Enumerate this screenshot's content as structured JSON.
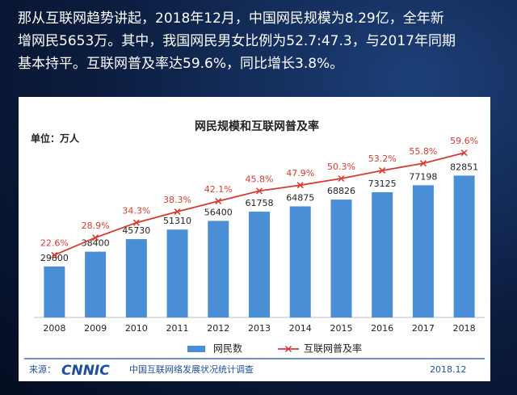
{
  "header": {
    "lines": [
      "那从互联网趋势讲起，2018年12月，中国网民规模为8.29亿，全年新",
      "增网民5653万。其中，我国网民男女比例为52.7:47.3，与2017年同期",
      "基本持平。互联网普及率达59.6%，同比增长3.8%。"
    ]
  },
  "chart_data": {
    "type": "bar-line",
    "title": "网民规模和互联网普及率",
    "unit": "单位：万人",
    "categories": [
      "2008",
      "2009",
      "2010",
      "2011",
      "2012",
      "2013",
      "2014",
      "2015",
      "2016",
      "2017",
      "2018"
    ],
    "series": [
      {
        "name": "网民数",
        "type": "bar",
        "color": "#4a8fd6",
        "values": [
          29800,
          38400,
          45730,
          51310,
          56400,
          61758,
          64875,
          68826,
          73125,
          77198,
          82851
        ]
      },
      {
        "name": "互联网普及率",
        "type": "line",
        "axis": "y2",
        "color": "#d63a32",
        "values": [
          22.6,
          28.9,
          34.3,
          38.3,
          42.1,
          45.8,
          47.9,
          50.3,
          53.2,
          55.8,
          59.6
        ],
        "value_labels": [
          "22.6%",
          "28.9%",
          "34.3%",
          "38.3%",
          "42.1%",
          "45.8%",
          "47.9%",
          "50.3%",
          "53.2%",
          "55.8%",
          "59.6%"
        ]
      }
    ],
    "ylim": [
      0,
      100000
    ],
    "y2lim": [
      0,
      62
    ],
    "legend": "bottom"
  },
  "footer": {
    "source": "来源：",
    "logo": "CNNIC",
    "survey": "中国互联网络发展状况统计调查",
    "date": "2018.12"
  }
}
